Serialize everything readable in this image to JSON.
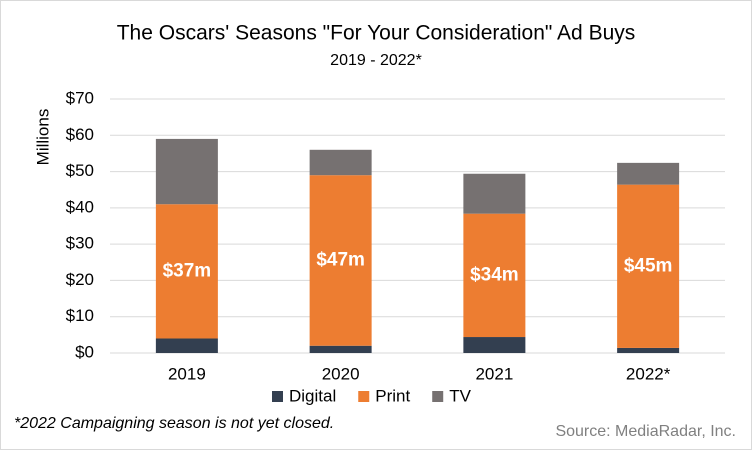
{
  "chart_data": {
    "type": "stacked_bar",
    "title": "The Oscars' Seasons \"For Your Consideration\" Ad Buys",
    "subtitle": "2019 - 2022*",
    "y_label": "Millions",
    "note": "*2022 Campaigning season is not yet closed.",
    "source": "Source: MediaRadar, Inc.",
    "categories": [
      "2019",
      "2020",
      "2021",
      "2022*"
    ],
    "series": [
      {
        "name": "Digital",
        "color": "#333f50",
        "values": [
          4,
          2,
          4.4,
          1.4
        ]
      },
      {
        "name": "Print",
        "color": "#ed7d31",
        "values": [
          37,
          47,
          34,
          45
        ],
        "value_labels": [
          "$37m",
          "$47m",
          "$34m",
          "$45m"
        ]
      },
      {
        "name": "TV",
        "color": "#767171",
        "values": [
          18,
          7,
          11,
          6
        ]
      }
    ],
    "ylim": [
      0,
      70
    ],
    "yticks": [
      {
        "value": 0,
        "label": "$0"
      },
      {
        "value": 10,
        "label": "$10"
      },
      {
        "value": 20,
        "label": "$20"
      },
      {
        "value": 30,
        "label": "$30"
      },
      {
        "value": 40,
        "label": "$40"
      },
      {
        "value": 50,
        "label": "$50"
      },
      {
        "value": 60,
        "label": "$60"
      },
      {
        "value": 70,
        "label": "$70"
      }
    ],
    "grid": true,
    "legend": "bottom"
  }
}
